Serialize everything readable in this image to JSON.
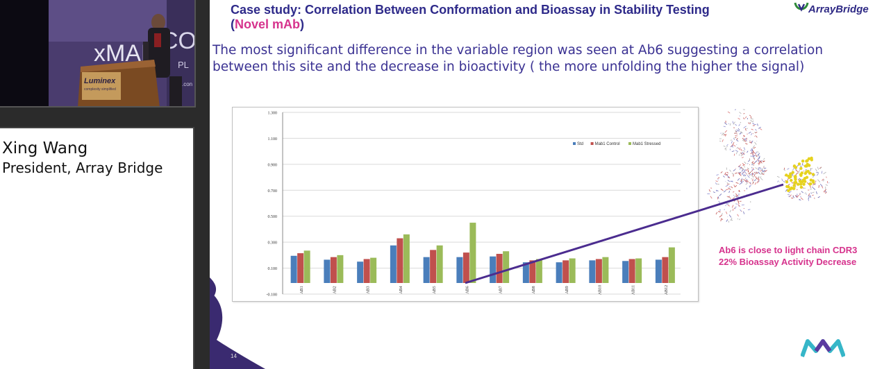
{
  "speaker": {
    "name": "Xing Wang",
    "title": "President, Array Bridge"
  },
  "video": {
    "backdrop_text": "xMAP",
    "backdrop_partial": "CO",
    "backdrop_partial2": "PL",
    "podium_brand": "Luminex",
    "podium_tagline": "complexity simplified",
    "backdrop_url_fragment": ".con"
  },
  "slide": {
    "title_part1": "Case study: Correlation Between Conformation and Bioassay in Stability Testing (",
    "title_highlight": "Novel mAb",
    "title_part2": ")",
    "body": "The most significant difference in the variable region was seen at Ab6 suggesting a correlation between this site and the decrease in bioactivity ( the more unfolding the higher the signal)",
    "logo_text": "ArrayBridge",
    "annotation": "Ab6 is close to light chain CDR3 22% Bioassay Activity Decrease",
    "number": "14"
  },
  "colors": {
    "title": "#2e2a8a",
    "highlight": "#d6338d",
    "std": "#4a7ebb",
    "control": "#c0504d",
    "stressed": "#9bbb59",
    "pointer_line": "#4b2c8f"
  },
  "chart_data": {
    "type": "bar",
    "title": "",
    "xlabel": "",
    "ylabel": "",
    "categories": [
      "AB1",
      "AB2",
      "AB3",
      "AB4",
      "AB5",
      "AB6",
      "AB7",
      "AB8",
      "AB9",
      "AB10",
      "AB11",
      "AB12"
    ],
    "series": [
      {
        "name": "Std",
        "values": [
          0.195,
          0.165,
          0.15,
          0.275,
          0.185,
          0.185,
          0.19,
          0.145,
          0.145,
          0.16,
          0.155,
          0.165
        ]
      },
      {
        "name": "Mab1 Control",
        "values": [
          0.215,
          0.185,
          0.17,
          0.33,
          0.24,
          0.22,
          0.21,
          0.16,
          0.16,
          0.17,
          0.17,
          0.185
        ]
      },
      {
        "name": "Mab1 Stressed",
        "values": [
          0.235,
          0.2,
          0.18,
          0.36,
          0.275,
          0.45,
          0.23,
          0.17,
          0.175,
          0.185,
          0.175,
          0.26
        ]
      }
    ],
    "ylim": [
      -0.1,
      1.3
    ],
    "yticks": [
      "1.300",
      "1.100",
      "0.900",
      "0.700",
      "0.500",
      "0.300",
      "0.100",
      "-0.100"
    ],
    "ytick_values": [
      1.3,
      1.1,
      0.9,
      0.7,
      0.5,
      0.3,
      0.1,
      -0.1
    ],
    "legend": "top-right",
    "grid": true
  }
}
